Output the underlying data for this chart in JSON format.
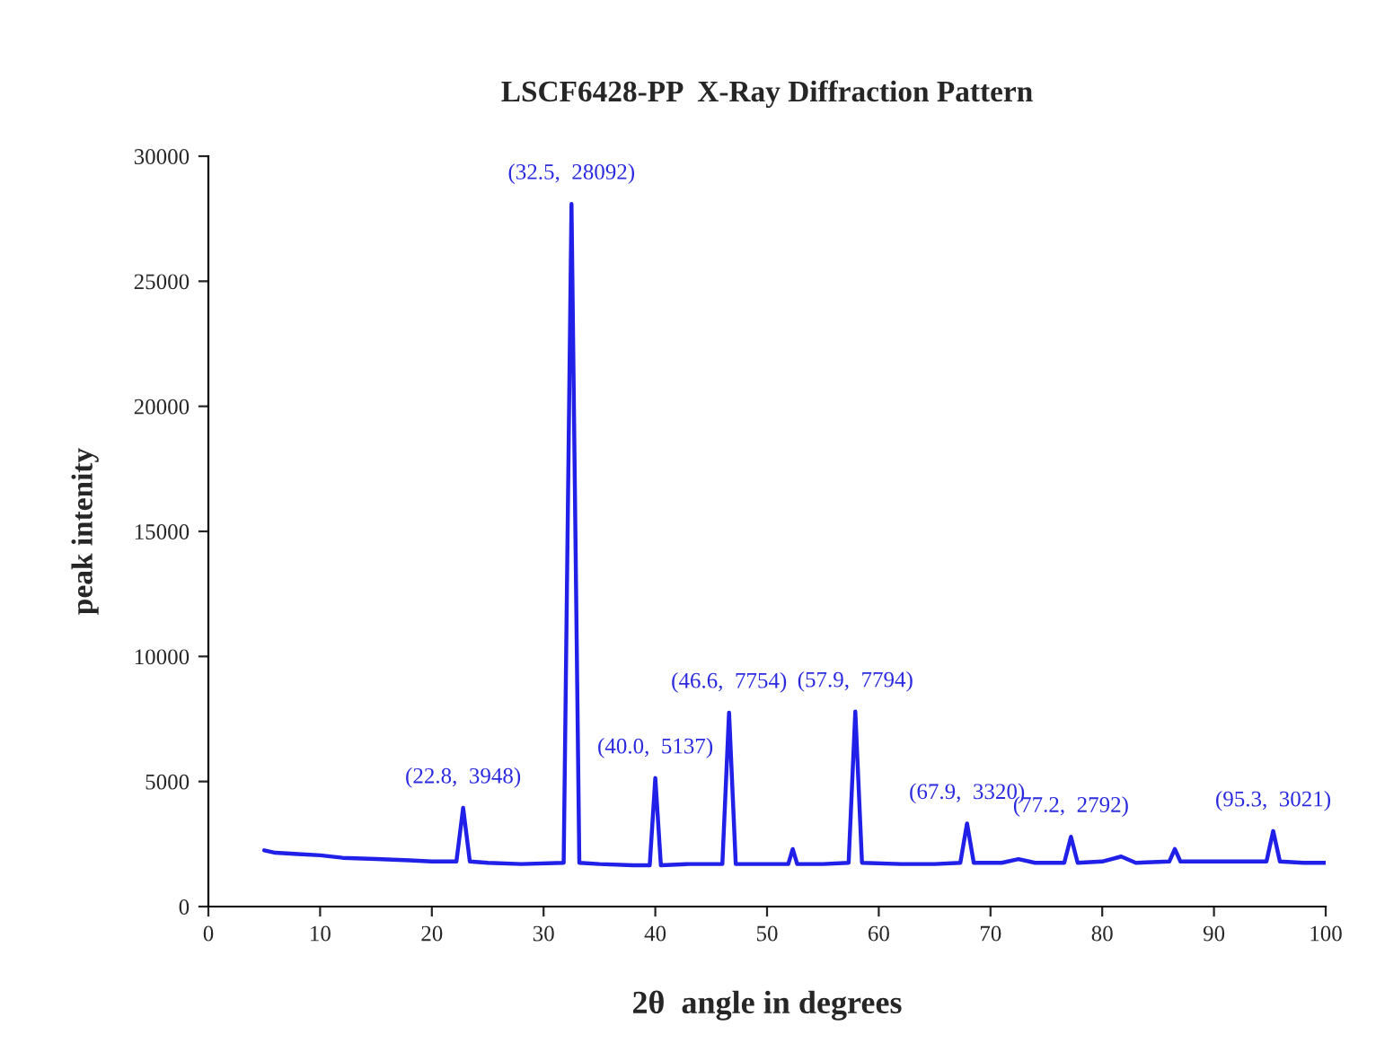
{
  "chart_data": {
    "type": "line",
    "title": "LSCF6428-PP  X-Ray Diffraction Pattern",
    "xlabel": "2θ  angle in degrees",
    "ylabel": "peak intenity",
    "xlim": [
      0,
      100
    ],
    "xticks": [
      0,
      10,
      20,
      30,
      40,
      50,
      60,
      70,
      80,
      90,
      100
    ],
    "ylim": [
      0,
      30000
    ],
    "yticks": [
      0,
      5000,
      10000,
      15000,
      20000,
      25000,
      30000
    ],
    "grid": false,
    "legend": false,
    "marker": "none",
    "line_style": "solid",
    "series": [
      {
        "color": "#2020e8",
        "x": [
          5,
          6,
          8,
          10,
          12,
          15,
          18,
          20,
          22.2,
          22.8,
          23.4,
          25,
          28,
          31.8,
          32.5,
          33.2,
          35,
          38,
          39.5,
          40.0,
          40.5,
          43,
          46.0,
          46.6,
          47.2,
          50,
          51.9,
          52.3,
          52.7,
          55,
          57.3,
          57.9,
          58.5,
          62,
          65,
          67.3,
          67.9,
          68.5,
          71,
          72.5,
          74,
          76.6,
          77.2,
          77.8,
          80,
          81.7,
          83,
          86,
          86.5,
          87,
          90,
          94.7,
          95.3,
          95.9,
          98,
          100
        ],
        "values": [
          2250,
          2150,
          2100,
          2050,
          1950,
          1900,
          1850,
          1800,
          1800,
          3948,
          1800,
          1750,
          1700,
          1750,
          28092,
          1750,
          1700,
          1650,
          1650,
          5137,
          1650,
          1700,
          1700,
          7754,
          1700,
          1700,
          1700,
          2300,
          1700,
          1700,
          1750,
          7794,
          1750,
          1700,
          1700,
          1750,
          3320,
          1750,
          1750,
          1900,
          1750,
          1750,
          2792,
          1750,
          1800,
          2000,
          1750,
          1800,
          2300,
          1800,
          1800,
          1800,
          3021,
          1800,
          1750,
          1750
        ]
      }
    ],
    "annotations": [
      {
        "text": "(22.8,  3948)",
        "x": 22.8,
        "y": 3948
      },
      {
        "text": "(32.5,  28092)",
        "x": 32.5,
        "y": 28092
      },
      {
        "text": "(40.0,  5137)",
        "x": 40.0,
        "y": 5137
      },
      {
        "text": "(46.6,  7754)",
        "x": 46.6,
        "y": 7754
      },
      {
        "text": "(57.9,  7794)",
        "x": 57.9,
        "y": 7794
      },
      {
        "text": "(67.9,  3320)",
        "x": 67.9,
        "y": 3320
      },
      {
        "text": "(77.2,  2792)",
        "x": 77.2,
        "y": 2792
      },
      {
        "text": "(95.3,  3021)",
        "x": 95.3,
        "y": 3021
      }
    ]
  }
}
